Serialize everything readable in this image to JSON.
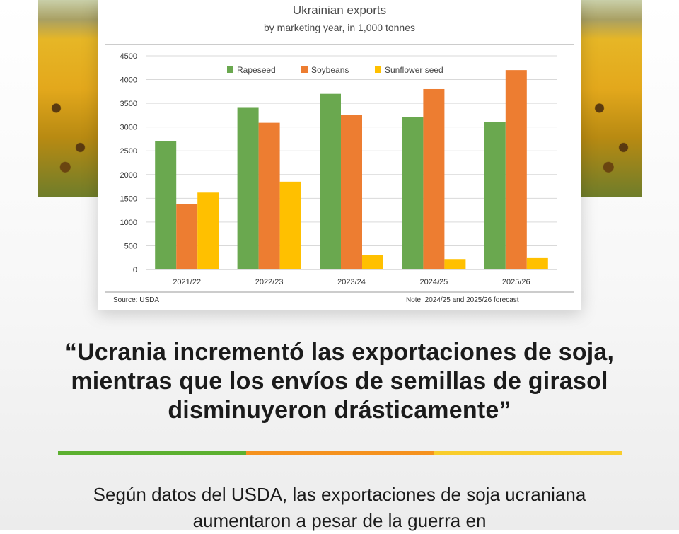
{
  "chart_data": {
    "type": "bar",
    "title": "Ukrainian exports",
    "subtitle": "by marketing year, in 1,000 tonnes",
    "categories": [
      "2021/22",
      "2022/23",
      "2023/24",
      "2024/25",
      "2025/26"
    ],
    "series": [
      {
        "name": "Rapeseed",
        "color": "#6aa84f",
        "values": [
          2700,
          3420,
          3700,
          3210,
          3100
        ]
      },
      {
        "name": "Soybeans",
        "color": "#ed7d31",
        "values": [
          1380,
          3090,
          3260,
          3800,
          4200
        ]
      },
      {
        "name": "Sunflower seed",
        "color": "#ffc000",
        "values": [
          1620,
          1850,
          310,
          220,
          240
        ]
      }
    ],
    "ylim": [
      0,
      4500
    ],
    "yticks": [
      0,
      500,
      1000,
      1500,
      2000,
      2500,
      3000,
      3500,
      4000,
      4500
    ],
    "grid": true,
    "legend_position": "top",
    "source": "Source: USDA",
    "note": "Note: 2024/25 and 2025/26 forecast"
  },
  "headline": "“Ucrania incrementó las exportaciones de soja, mientras que los envíos de semillas de girasol disminuyeron drásticamente”",
  "body": "Según datos del USDA, las exportaciones de soja ucraniana aumentaron a pesar de la guerra en",
  "divider_colors": [
    "#5cb030",
    "#f5921e",
    "#f9cd2c"
  ]
}
